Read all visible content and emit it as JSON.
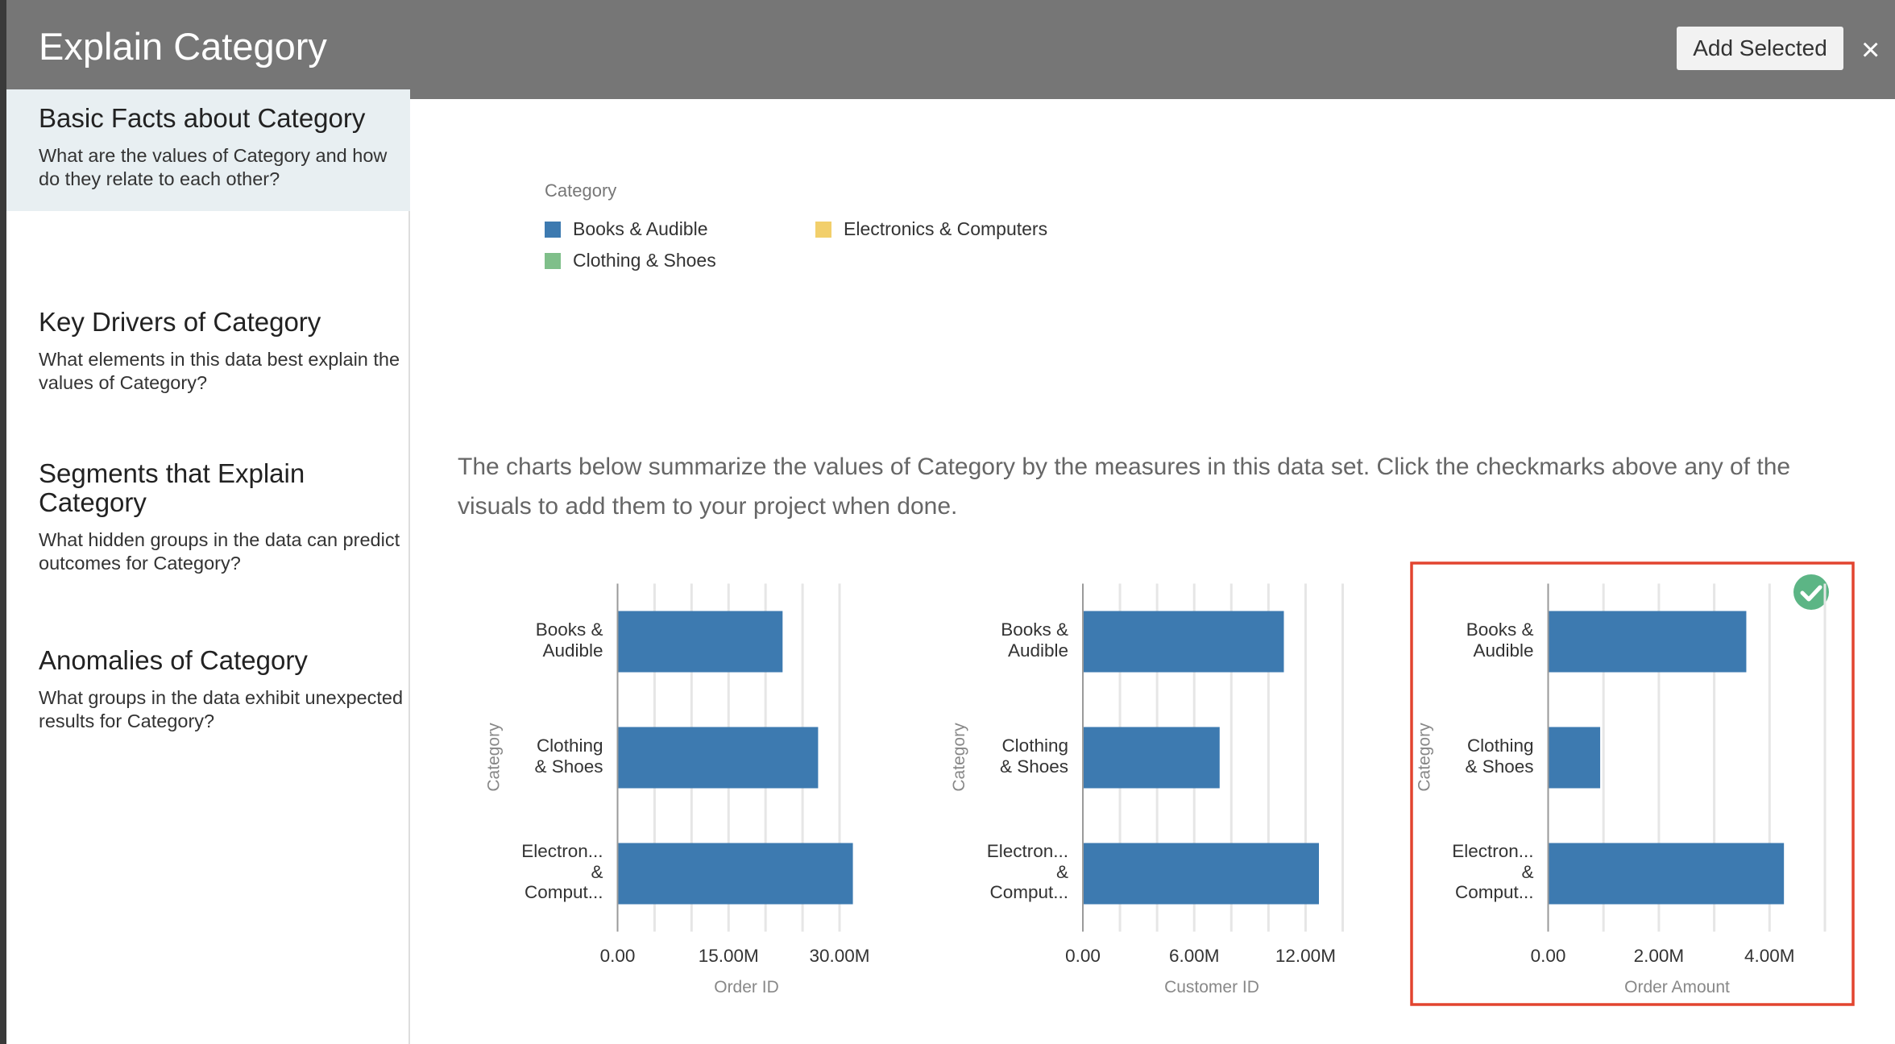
{
  "header": {
    "title": "Explain Category",
    "button": "Add Selected",
    "close": "×"
  },
  "sidebar": {
    "active_item": 0,
    "items": [
      {
        "title": "Basic Facts about Category",
        "description": "What are the values of Category and how do they relate to each other?"
      },
      {
        "title": "Key Drivers of Category",
        "description": "What elements in this data best explain the values of Category?"
      },
      {
        "title": "Segments that Explain Category",
        "description": "What hidden groups in the data can predict outcomes for Category?"
      },
      {
        "title": "Anomalies of Category",
        "description": "What groups in the data exhibit unexpected results for Category?"
      }
    ]
  },
  "legend": {
    "title": "Category",
    "items": [
      {
        "name": "Books & Audible",
        "color": "#3d7ab0"
      },
      {
        "name": "Clothing & Shoes",
        "color": "#7fbf8a"
      },
      {
        "name": "Electronics & Computers",
        "color": "#f2cf6b"
      }
    ]
  },
  "description": "The charts below summarize the values of Category by the measures in this data set. Click the checkmarks above any of the visuals to add them to your project when done.",
  "chart_data": [
    {
      "type": "bar",
      "orientation": "horizontal",
      "categories": [
        "Books &\nAudible",
        "Clothing\n& Shoes",
        "Electron...\n&\nComput..."
      ],
      "values": [
        22300000,
        27100000,
        31800000
      ],
      "color": "#3d7ab0",
      "xlim": [
        0,
        32500000
      ],
      "xticks": [
        {
          "value": 0,
          "label": "0.00"
        },
        {
          "value": 15000000,
          "label": "15.00M"
        },
        {
          "value": 30000000,
          "label": "30.00M"
        }
      ],
      "xgrid": [
        5000000,
        10000000,
        15000000,
        20000000,
        25000000,
        30000000
      ],
      "xlabel": "Order ID",
      "ylabel": "Category",
      "selected": false
    },
    {
      "type": "bar",
      "orientation": "horizontal",
      "categories": [
        "Books &\nAudible",
        "Clothing\n& Shoes",
        "Electron...\n&\nComput..."
      ],
      "values": [
        10830000,
        7370000,
        12720000
      ],
      "color": "#3d7ab0",
      "xlim": [
        0,
        14000000
      ],
      "xticks": [
        {
          "value": 0,
          "label": "0.00"
        },
        {
          "value": 6000000,
          "label": "6.00M"
        },
        {
          "value": 12000000,
          "label": "12.00M"
        }
      ],
      "xgrid": [
        2000000,
        4000000,
        6000000,
        8000000,
        10000000,
        12000000,
        14000000
      ],
      "xlabel": "Customer ID",
      "ylabel": "Category",
      "selected": false
    },
    {
      "type": "bar",
      "orientation": "horizontal",
      "categories": [
        "Books &\nAudible",
        "Clothing\n& Shoes",
        "Electron...\n&\nComput..."
      ],
      "values": [
        3580000,
        940000,
        4260000
      ],
      "color": "#3d7ab0",
      "xlim": [
        0,
        5000000
      ],
      "xticks": [
        {
          "value": 0,
          "label": "0.00"
        },
        {
          "value": 2000000,
          "label": "2.00M"
        },
        {
          "value": 4000000,
          "label": "4.00M"
        }
      ],
      "xgrid": [
        1000000,
        2000000,
        3000000,
        4000000,
        5000000
      ],
      "xlabel": "Order Amount",
      "ylabel": "Category",
      "selected": true
    }
  ]
}
